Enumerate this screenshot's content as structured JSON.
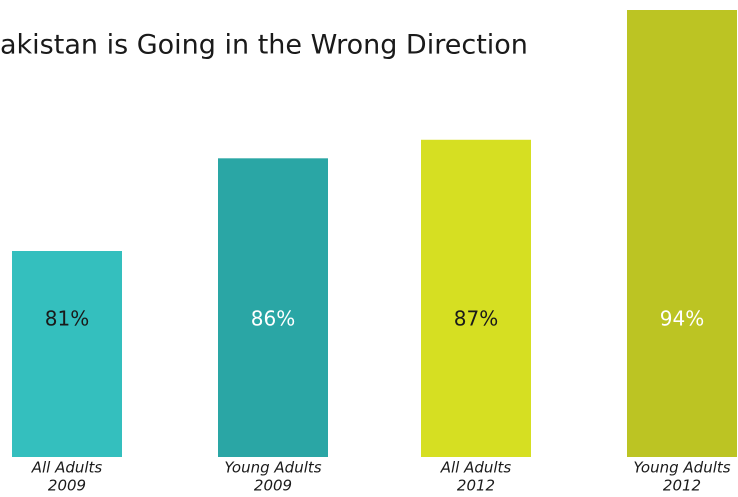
{
  "chart_data": {
    "type": "bar",
    "title": "akistan is Going in the Wrong Direction",
    "categories": [
      [
        "All Adults",
        "2009"
      ],
      [
        "Young Adults",
        "2009"
      ],
      [
        "All Adults",
        "2012"
      ],
      [
        "Young Adults",
        "2012"
      ]
    ],
    "values": [
      81,
      86,
      87,
      94
    ],
    "value_labels": [
      "81%",
      "86%",
      "87%",
      "94%"
    ],
    "colors": [
      "#34bfbe",
      "#2aa6a5",
      "#d6df22",
      "#bcc423"
    ],
    "label_colors": [
      "#1a1a1a",
      "#ffffff",
      "#1a1a1a",
      "#ffffff"
    ]
  }
}
